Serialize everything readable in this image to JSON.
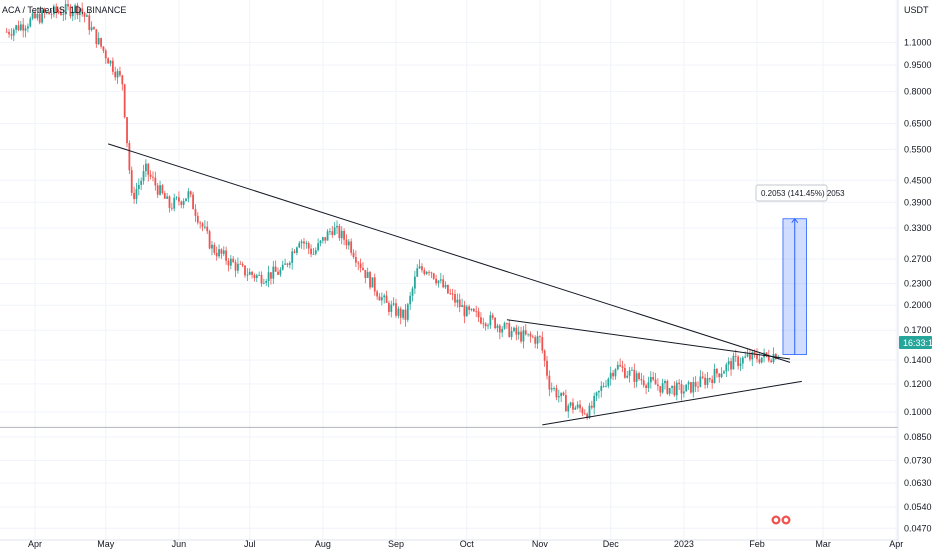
{
  "header": {
    "symbol_line": "ACA / TetherUS, 1D, BINANCE",
    "currency": "USDT"
  },
  "price_badge": {
    "text": "16:33:15",
    "color": "#26a69a"
  },
  "measure_label": {
    "text": "0.2053 (141.45%) 2053"
  },
  "colors": {
    "up": "#26a69a",
    "down": "#ef5350",
    "measure": "#2962ff",
    "trendline": "#131722"
  },
  "chart_data": {
    "type": "candlestick",
    "scale": "log",
    "ylim": [
      0.045,
      1.45
    ],
    "y_ticks": [
      "1.1000",
      "0.9500",
      "0.8000",
      "0.6500",
      "0.5500",
      "0.4500",
      "0.3900",
      "0.3300",
      "0.2700",
      "0.2300",
      "0.2000",
      "0.1700",
      "0.1400",
      "0.1200",
      "0.1000",
      "0.0850",
      "0.0730",
      "0.0630",
      "0.0540",
      "0.0470"
    ],
    "x_ticks": [
      {
        "label": "Apr",
        "date": "2022-04-01"
      },
      {
        "label": "May",
        "date": "2022-05-01"
      },
      {
        "label": "Jun",
        "date": "2022-06-01"
      },
      {
        "label": "Jul",
        "date": "2022-07-01"
      },
      {
        "label": "Aug",
        "date": "2022-08-01"
      },
      {
        "label": "Sep",
        "date": "2022-09-01"
      },
      {
        "label": "Oct",
        "date": "2022-10-01"
      },
      {
        "label": "Nov",
        "date": "2022-11-01"
      },
      {
        "label": "Dec",
        "date": "2022-12-01"
      },
      {
        "label": "2023",
        "date": "2023-01-01"
      },
      {
        "label": "Feb",
        "date": "2023-02-01"
      },
      {
        "label": "Mar",
        "date": "2023-03-01"
      },
      {
        "label": "Apr",
        "date": "2023-04-01"
      }
    ],
    "price_path": [
      [
        "2022-03-20",
        1.18
      ],
      [
        "2022-04-05",
        1.32
      ],
      [
        "2022-04-20",
        1.38
      ],
      [
        "2022-04-28",
        1.1
      ],
      [
        "2022-05-08",
        0.85
      ],
      [
        "2022-05-12",
        0.4
      ],
      [
        "2022-05-18",
        0.48
      ],
      [
        "2022-05-28",
        0.38
      ],
      [
        "2022-06-05",
        0.41
      ],
      [
        "2022-06-15",
        0.29
      ],
      [
        "2022-06-28",
        0.25
      ],
      [
        "2022-07-05",
        0.24
      ],
      [
        "2022-07-15",
        0.25
      ],
      [
        "2022-07-22",
        0.31
      ],
      [
        "2022-07-28",
        0.28
      ],
      [
        "2022-08-05",
        0.33
      ],
      [
        "2022-08-12",
        0.3
      ],
      [
        "2022-08-20",
        0.24
      ],
      [
        "2022-08-28",
        0.2
      ],
      [
        "2022-09-05",
        0.185
      ],
      [
        "2022-09-10",
        0.25
      ],
      [
        "2022-09-15",
        0.255
      ],
      [
        "2022-09-22",
        0.22
      ],
      [
        "2022-10-01",
        0.19
      ],
      [
        "2022-10-12",
        0.18
      ],
      [
        "2022-10-22",
        0.165
      ],
      [
        "2022-11-01",
        0.16
      ],
      [
        "2022-11-05",
        0.12
      ],
      [
        "2022-11-12",
        0.105
      ],
      [
        "2022-11-22",
        0.1
      ],
      [
        "2022-11-28",
        0.12
      ],
      [
        "2022-12-03",
        0.135
      ],
      [
        "2022-12-12",
        0.125
      ],
      [
        "2022-12-22",
        0.118
      ],
      [
        "2023-01-01",
        0.115
      ],
      [
        "2023-01-12",
        0.125
      ],
      [
        "2023-01-22",
        0.138
      ],
      [
        "2023-01-28",
        0.142
      ],
      [
        "2023-02-05",
        0.143
      ],
      [
        "2023-02-10",
        0.147
      ]
    ],
    "drawings": {
      "upper_trendline": [
        [
          "2022-05-02",
          0.57
        ],
        [
          "2023-02-15",
          0.138
        ]
      ],
      "lower_trendline": [
        [
          "2022-11-02",
          0.092
        ],
        [
          "2023-02-20",
          0.122
        ]
      ],
      "mid_trendline": [
        [
          "2022-10-18",
          0.182
        ],
        [
          "2023-02-15",
          0.141
        ]
      ],
      "horizontal_line": 0.0905,
      "measure_box": {
        "from_date": "2023-02-12",
        "to_date": "2023-02-22",
        "low": 0.1452,
        "high": 0.3505
      }
    }
  }
}
